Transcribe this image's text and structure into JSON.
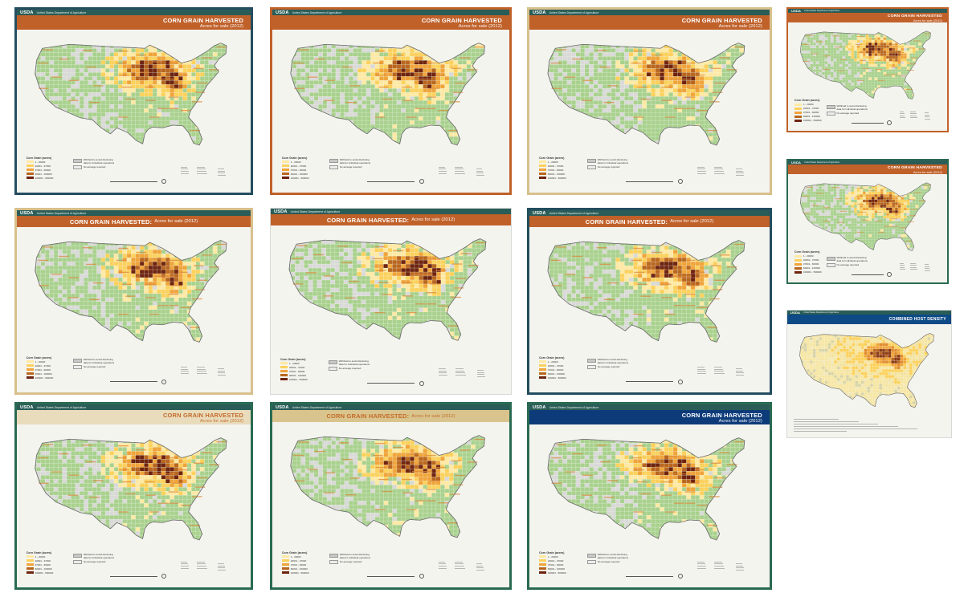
{
  "header": {
    "agency": "USDA",
    "department": "United States Department of Agriculture"
  },
  "colors": {
    "land": "#a9d18e",
    "none": "#d9d9d7",
    "county": "#ffffff",
    "class1": "#ffe9a3",
    "class2": "#fcd15c",
    "class3": "#f0a43a",
    "class4": "#b9661f",
    "class5": "#6e2410",
    "stateLabel": "#d9893e"
  },
  "legend": {
    "title": "Corn Grain (acres)",
    "classes": [
      "1 - 20000",
      "20001 - 37000",
      "37001 - 60000",
      "60001 - 100000",
      "100001 - 500000"
    ],
    "withheld": "Withheld to avoid disclosing data for individual operations",
    "none": "No acreage reported"
  },
  "maps": [
    {
      "title": "CORN GRAIN HARVESTED",
      "subtitle": "Acres for sale (2012)",
      "layout": "stacked",
      "frame": "#244d60",
      "topbar": "#2a5d57",
      "titlebar": "#c0612a"
    },
    {
      "title": "CORN GRAIN HARVESTED",
      "subtitle": "Acres for sale (2012)",
      "layout": "stacked",
      "frame": "#c0612a",
      "topbar": "#2a5d57",
      "titlebar": "#c0612a"
    },
    {
      "title": "CORN GRAIN HARVESTED",
      "subtitle": "Acres for sale (2012)",
      "layout": "stacked",
      "frame": "#d8c08c",
      "topbar": "#2a5d57",
      "titlebar": "#c0612a"
    },
    {
      "title": "CORN GRAIN HARVESTED",
      "subtitle": "Acres for sale (2012)",
      "layout": "stacked",
      "frame": "#c0612a",
      "topbar": "#2a5d57",
      "titlebar": "#c0612a"
    },
    {
      "title": "CORN GRAIN HARVESTED",
      "subtitle": "Acres for sale (2012)",
      "layout": "stacked",
      "frame": "#2a6a52",
      "topbar": "#2a5d57",
      "titlebar": "#c0612a"
    },
    {
      "title": "CORN GRAIN HARVESTED:",
      "subtitle": "Acres for sale (2012)",
      "layout": "inline",
      "frame": "#d8c08c",
      "topbar": "#2a5d57",
      "titlebar": "#c0612a"
    },
    {
      "title": "CORN GRAIN HARVESTED:",
      "subtitle": "Acres for sale (2012)",
      "layout": "inline",
      "frame": "#ffffff",
      "topbar": "#2a5d57",
      "titlebar": "#c0612a"
    },
    {
      "title": "CORN GRAIN HARVESTED:",
      "subtitle": "Acres for sale (2012)",
      "layout": "inline",
      "frame": "#244d60",
      "topbar": "#2a5d57",
      "titlebar": "#c0612a"
    },
    {
      "title": "COMBINED HOST DENSITY",
      "subtitle": "",
      "layout": "stacked",
      "frame": "#ffffff",
      "topbar": "#2a5d57",
      "titlebar": "#0d4a86"
    },
    {
      "title": "CORN GRAIN HARVESTED",
      "subtitle": "Acres for sale (2012)",
      "layout": "stacked",
      "frame": "#2a6a52",
      "topbar": "#2a5d57",
      "titlebar": "#e8dcbc"
    },
    {
      "title": "CORN GRAIN HARVESTED:",
      "subtitle": "Acres for sale (2012)",
      "layout": "inline",
      "frame": "#2a6a52",
      "topbar": "#2a5d57",
      "titlebar": "#d9c48d"
    },
    {
      "title": "CORN GRAIN HARVESTED",
      "subtitle": "Acres for sale (2012)",
      "layout": "stacked",
      "frame": "#2a6a52",
      "topbar": "#2a5d57",
      "titlebar": "#0d3b7a"
    }
  ]
}
